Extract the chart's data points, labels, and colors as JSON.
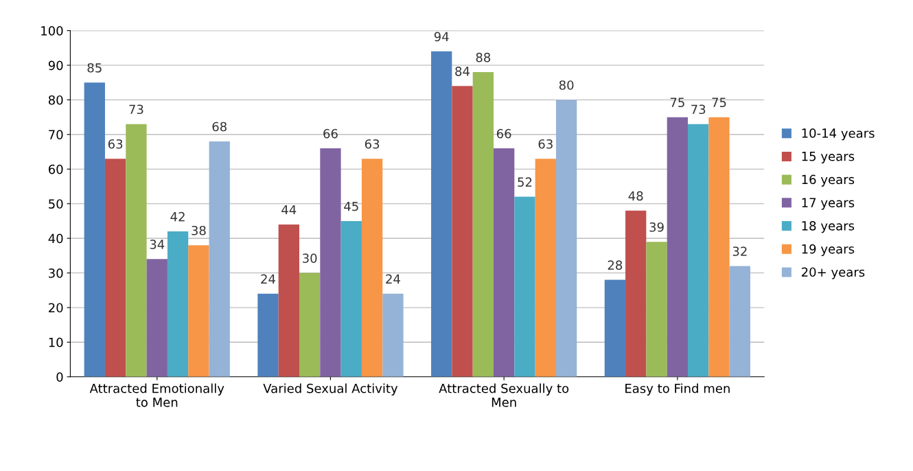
{
  "chart_data": {
    "type": "bar",
    "categories": [
      "Attracted Emotionally\nto Men",
      "Varied Sexual Activity",
      "Attracted Sexually to\nMen",
      "Easy to Find men"
    ],
    "series": [
      {
        "name": "10-14 years",
        "color": "#4f81bd",
        "values": [
          85,
          24,
          94,
          28
        ]
      },
      {
        "name": "15 years",
        "color": "#c0504d",
        "values": [
          63,
          44,
          84,
          48
        ]
      },
      {
        "name": "16 years",
        "color": "#9bbb59",
        "values": [
          73,
          30,
          88,
          39
        ]
      },
      {
        "name": "17 years",
        "color": "#8064a2",
        "values": [
          34,
          66,
          66,
          75
        ]
      },
      {
        "name": "18 years",
        "color": "#4bacc6",
        "values": [
          42,
          45,
          52,
          73
        ]
      },
      {
        "name": "19 years",
        "color": "#f79646",
        "values": [
          38,
          63,
          63,
          75
        ]
      },
      {
        "name": "20+ years",
        "color": "#95b3d7",
        "values": [
          68,
          24,
          80,
          32
        ]
      }
    ],
    "ylim": [
      0,
      100
    ],
    "yticks": [
      0,
      10,
      20,
      30,
      40,
      50,
      60,
      70,
      80,
      90,
      100
    ],
    "grid": "y",
    "legend": "right",
    "data_labels": true
  }
}
